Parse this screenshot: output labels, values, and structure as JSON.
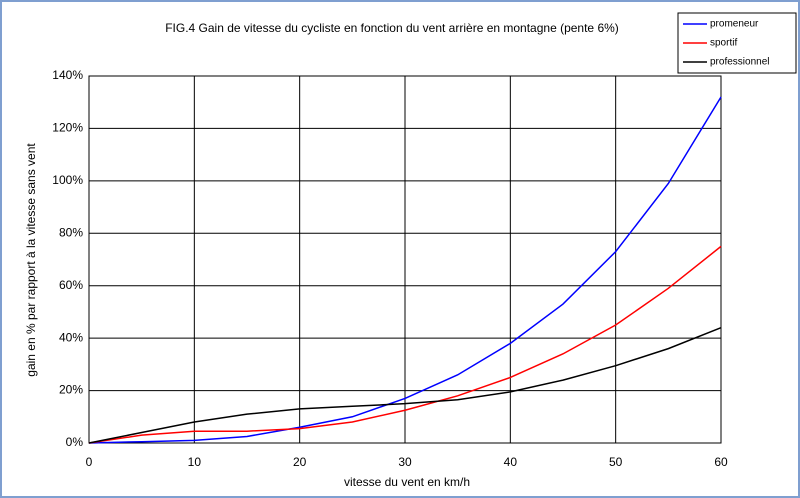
{
  "chart_data": {
    "type": "line",
    "title": "FIG.4 Gain de vitesse du cycliste en fonction du vent arrière en montagne (pente 6%)",
    "x_label": "vitesse du vent en km/h",
    "y_label": "gain en % par rapport à la vitesse sans vent",
    "x": [
      0,
      5,
      10,
      15,
      20,
      25,
      30,
      35,
      40,
      45,
      50,
      55,
      60
    ],
    "series": [
      {
        "name": "promeneur",
        "color": "#0000ff",
        "values": [
          0,
          0.5,
          1,
          2.5,
          6,
          10,
          17,
          26,
          38,
          53,
          73,
          99,
          132
        ]
      },
      {
        "name": "sportif",
        "color": "#ff0000",
        "values": [
          0,
          3,
          4.5,
          4.5,
          5.5,
          8,
          12.5,
          18,
          25,
          34,
          45,
          59,
          75
        ]
      },
      {
        "name": "professionnel",
        "color": "#000000",
        "values": [
          0,
          4,
          8,
          11,
          13,
          14,
          15,
          16.5,
          19.5,
          24,
          29.5,
          36,
          44
        ]
      }
    ],
    "xlim": [
      0,
      60
    ],
    "xticks": [
      0,
      10,
      20,
      30,
      40,
      50,
      60
    ],
    "ylim": [
      0,
      140
    ],
    "yticks": [
      {
        "value": 0,
        "label": "0%"
      },
      {
        "value": 20,
        "label": "20%"
      },
      {
        "value": 40,
        "label": "40%"
      },
      {
        "value": 60,
        "label": "60%"
      },
      {
        "value": 80,
        "label": "80%"
      },
      {
        "value": 100,
        "label": "100%"
      },
      {
        "value": 120,
        "label": "120%"
      },
      {
        "value": 140,
        "label": "140%"
      }
    ],
    "grid": true,
    "legend": "top-right"
  }
}
